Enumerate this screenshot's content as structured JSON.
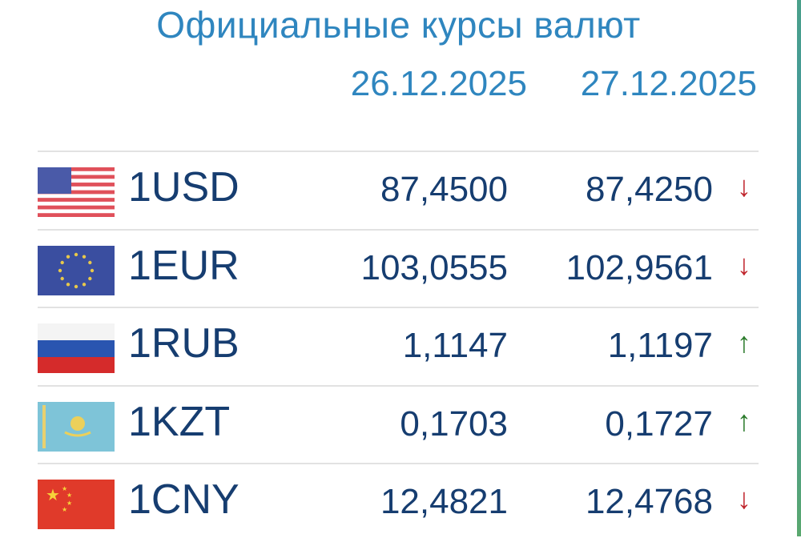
{
  "title": "Официальные курсы валют",
  "dates": [
    "26.12.2025",
    "27.12.2025"
  ],
  "colors": {
    "up": "#2a7a2a",
    "down": "#c0262d",
    "text": "#163d70",
    "accent": "#2f86bf"
  },
  "rows": [
    {
      "flag": "us-flag-icon",
      "code": "1USD",
      "v1": "87,4500",
      "v2": "87,4250",
      "dir": "down",
      "arrow": "↓"
    },
    {
      "flag": "eu-flag-icon",
      "code": "1EUR",
      "v1": "103,0555",
      "v2": "102,9561",
      "dir": "down",
      "arrow": "↓"
    },
    {
      "flag": "ru-flag-icon",
      "code": "1RUB",
      "v1": "1,1147",
      "v2": "1,1197",
      "dir": "up",
      "arrow": "↑"
    },
    {
      "flag": "kz-flag-icon",
      "code": "1KZT",
      "v1": "0,1703",
      "v2": "0,1727",
      "dir": "up",
      "arrow": "↑"
    },
    {
      "flag": "cn-flag-icon",
      "code": "1CNY",
      "v1": "12,4821",
      "v2": "12,4768",
      "dir": "down",
      "arrow": "↓"
    }
  ]
}
